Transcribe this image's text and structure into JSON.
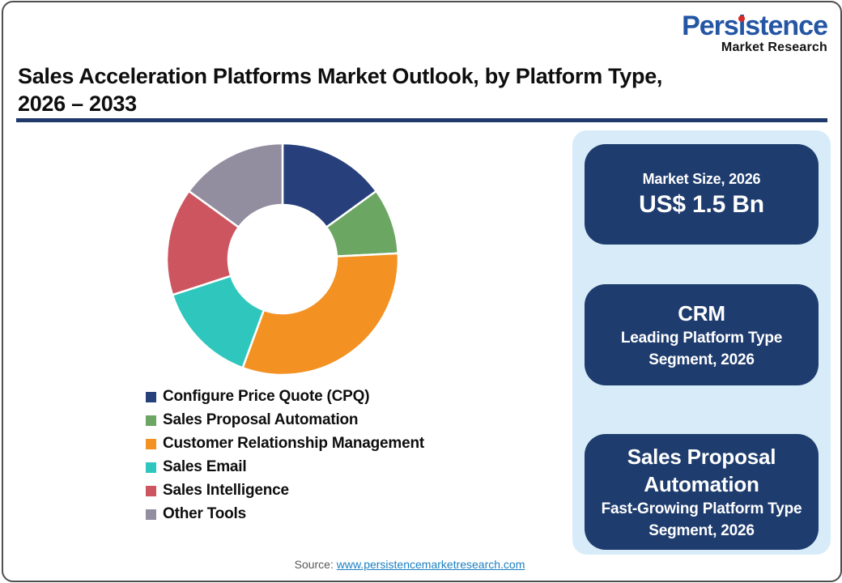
{
  "logo": {
    "brand_pre": "Pers",
    "brand_i": "i",
    "brand_post": "stence",
    "subtitle": "Market Research",
    "brand_color": "#2456a4",
    "dot_color": "#d42b2b"
  },
  "header": {
    "title_line1": "Sales Acceleration Platforms Market Outlook, by Platform Type,",
    "title_line2": "2026 – 2033",
    "underline_color": "#20396b"
  },
  "chart_data": {
    "type": "pie",
    "subtype": "donut",
    "title": "Sales Acceleration Platforms Market Outlook, by Platform Type, 2026 – 2033",
    "categories": [
      "Configure Price Quote (CPQ)",
      "Sales Proposal Automation",
      "Customer Relationship Management",
      "Sales Email",
      "Sales Intelligence",
      "Other Tools"
    ],
    "values": [
      15,
      9.2,
      31.4,
      14.4,
      15,
      15
    ],
    "unit": "percent-of-market (estimated from arc angles, no data labels shown)",
    "colors": [
      "#27407b",
      "#6ba763",
      "#f39122",
      "#2fc7bd",
      "#cc5560",
      "#938da0"
    ],
    "start_angle_deg": 0,
    "direction": "clockwise",
    "donut_hole_ratio": 0.47,
    "separator_color": "#ffffff",
    "legend_position": "below-left"
  },
  "stats": {
    "cards": [
      {
        "label": "Market Size, 2026",
        "value": "US$ 1.5 Bn"
      },
      {
        "title": "CRM",
        "subtitle": "Leading Platform Type Segment, 2026"
      },
      {
        "title": "Sales Proposal Automation",
        "subtitle": "Fast-Growing Platform Type Segment, 2026"
      }
    ],
    "panel_bg": "#d7ecf8",
    "card_bg": "#1e3c6e"
  },
  "source": {
    "prefix": "Source: ",
    "link": "www.persistencemarketresearch.com"
  }
}
